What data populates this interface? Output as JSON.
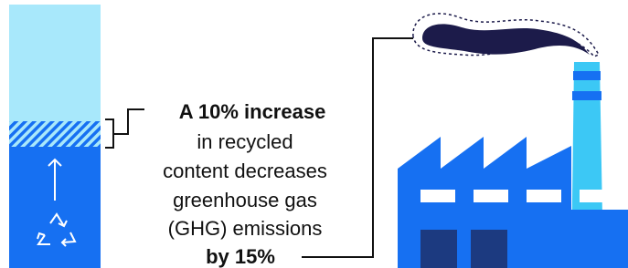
{
  "callout": {
    "lines": [
      "A 10% increase",
      "in recycled",
      "content decreases",
      "greenhouse gas",
      "(GHG) emissions",
      "by 15%"
    ]
  }
}
